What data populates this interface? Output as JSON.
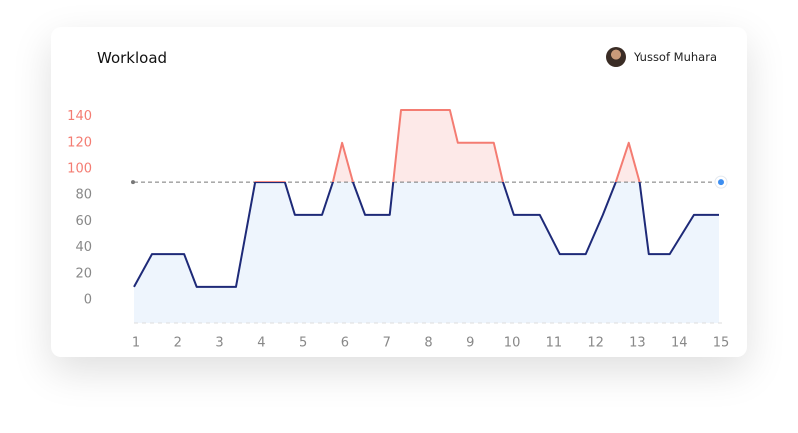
{
  "header": {
    "title": "Workload",
    "user": "Yussof Muhara"
  },
  "chart_data": {
    "type": "line",
    "x": [
      1,
      1.43,
      2.2,
      2.5,
      3.44,
      3.9,
      4.61,
      4.85,
      5.5,
      5.76,
      5.98,
      6.24,
      6.53,
      7.12,
      7.39,
      8.56,
      8.75,
      9.61,
      9.83,
      10.09,
      10.71,
      11.19,
      11.81,
      12.22,
      12.53,
      12.84,
      13.1,
      13.32,
      13.82,
      14.4,
      15
    ],
    "values": [
      10,
      35,
      35,
      10,
      10,
      90,
      90,
      65,
      65,
      90,
      120,
      90,
      65,
      65,
      145,
      145,
      120,
      120,
      90,
      65,
      65,
      35,
      35,
      65,
      90,
      120,
      90,
      35,
      35,
      65,
      65
    ],
    "threshold": 90,
    "color": "#1e2a78",
    "above_color": "#f47c72",
    "fill": "#eef5fd",
    "above_fill": "#fde9e8",
    "xlim": [
      1,
      15
    ],
    "xticks": [
      1,
      2,
      3,
      4,
      5,
      6,
      7,
      8,
      9,
      10,
      11,
      12,
      13,
      14,
      15
    ],
    "ylim": [
      0,
      140
    ],
    "yticks": [
      0,
      20,
      40,
      60,
      80,
      100,
      120,
      140
    ]
  }
}
